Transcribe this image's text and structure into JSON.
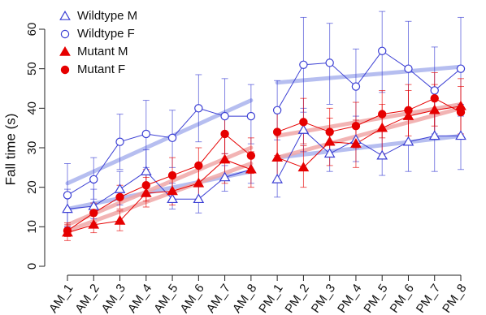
{
  "chart_data": {
    "type": "line",
    "ylabel": "Fall time (s)",
    "ylim": [
      0,
      60
    ],
    "yticks": [
      0,
      10,
      20,
      30,
      40,
      50,
      60
    ],
    "categories": [
      "AM_1",
      "AM_2",
      "AM_3",
      "AM_4",
      "AM_5",
      "AM_6",
      "AM_7",
      "AM_8",
      "PM_1",
      "PM_2",
      "PM_3",
      "PM_4",
      "PM_5",
      "PM_6",
      "PM_7",
      "PM_8"
    ],
    "segments": [
      [
        0,
        7
      ],
      [
        8,
        15
      ]
    ],
    "legend_position": "top-left",
    "series": [
      {
        "name": "Wildtype M",
        "marker": "triangle-open",
        "color": "#3b3fd4",
        "trend_color": "#aab3ee",
        "values": [
          14.5,
          15.2,
          19.5,
          24.0,
          17.0,
          17.0,
          22.5,
          24.5,
          22.0,
          34.5,
          28.5,
          32.0,
          28.0,
          31.5,
          33.0,
          33.0
        ],
        "err_low": [
          10.0,
          12.0,
          15.5,
          18.5,
          14.5,
          13.5,
          19.0,
          21.0,
          17.5,
          29.0,
          24.0,
          26.5,
          23.0,
          24.0,
          24.0,
          24.5
        ],
        "err_high": [
          19.5,
          19.5,
          24.0,
          29.5,
          21.0,
          21.0,
          25.5,
          28.5,
          27.0,
          40.0,
          34.5,
          38.0,
          34.5,
          39.0,
          42.0,
          41.0
        ],
        "trend": [
          [
            14.5,
            24.0
          ],
          [
            27.5,
            33.0
          ]
        ]
      },
      {
        "name": "Wildtype F",
        "marker": "circle-open",
        "color": "#3b3fd4",
        "trend_color": "#aab3ee",
        "values": [
          18.0,
          22.0,
          31.5,
          33.5,
          32.5,
          40.0,
          38.0,
          38.0,
          39.5,
          51.0,
          51.5,
          45.5,
          54.5,
          50.0,
          44.5,
          50.0
        ],
        "err_low": [
          10.0,
          17.0,
          24.5,
          25.0,
          25.0,
          31.5,
          28.5,
          31.0,
          32.0,
          39.0,
          41.0,
          36.0,
          44.0,
          39.0,
          33.5,
          38.0
        ],
        "err_high": [
          26.0,
          27.5,
          38.5,
          42.0,
          39.5,
          48.5,
          47.5,
          46.0,
          47.0,
          63.0,
          61.5,
          55.0,
          64.5,
          62.0,
          55.5,
          63.0
        ],
        "trend": [
          [
            21.0,
            42.0
          ],
          [
            46.5,
            50.5
          ]
        ]
      },
      {
        "name": "Mutant M",
        "marker": "triangle-filled",
        "color": "#e60000",
        "trend_color": "#f0a8a8",
        "values": [
          8.5,
          10.5,
          11.5,
          18.5,
          19.0,
          21.0,
          27.0,
          24.5,
          27.5,
          25.0,
          31.5,
          31.0,
          35.0,
          38.0,
          39.5,
          40.5
        ],
        "err_low": [
          6.5,
          8.5,
          9.0,
          15.0,
          15.5,
          17.0,
          21.0,
          20.0,
          21.5,
          20.0,
          25.5,
          25.0,
          28.5,
          31.5,
          33.0,
          33.5
        ],
        "err_high": [
          10.5,
          13.0,
          14.0,
          22.5,
          23.0,
          25.0,
          33.0,
          29.0,
          33.5,
          30.5,
          37.5,
          37.0,
          41.0,
          44.5,
          46.0,
          47.5
        ],
        "trend": [
          [
            9.0,
            26.0
          ],
          [
            27.5,
            40.0
          ]
        ]
      },
      {
        "name": "Mutant F",
        "marker": "circle-filled",
        "color": "#e60000",
        "trend_color": "#f0a8a8",
        "values": [
          9.0,
          13.5,
          17.5,
          20.5,
          23.0,
          25.5,
          33.5,
          28.0,
          34.0,
          36.5,
          34.0,
          35.5,
          38.5,
          39.5,
          42.5,
          39.0
        ],
        "err_low": [
          7.5,
          11.0,
          14.5,
          16.5,
          18.5,
          21.0,
          28.5,
          23.5,
          28.0,
          31.0,
          28.0,
          30.0,
          32.5,
          33.0,
          35.5,
          32.5
        ],
        "err_high": [
          11.0,
          16.0,
          20.5,
          24.5,
          27.5,
          30.0,
          38.5,
          32.5,
          40.0,
          42.5,
          40.0,
          41.5,
          44.5,
          46.0,
          49.0,
          45.5
        ],
        "trend": [
          [
            10.5,
            30.0
          ],
          [
            33.0,
            41.0
          ]
        ]
      }
    ]
  }
}
